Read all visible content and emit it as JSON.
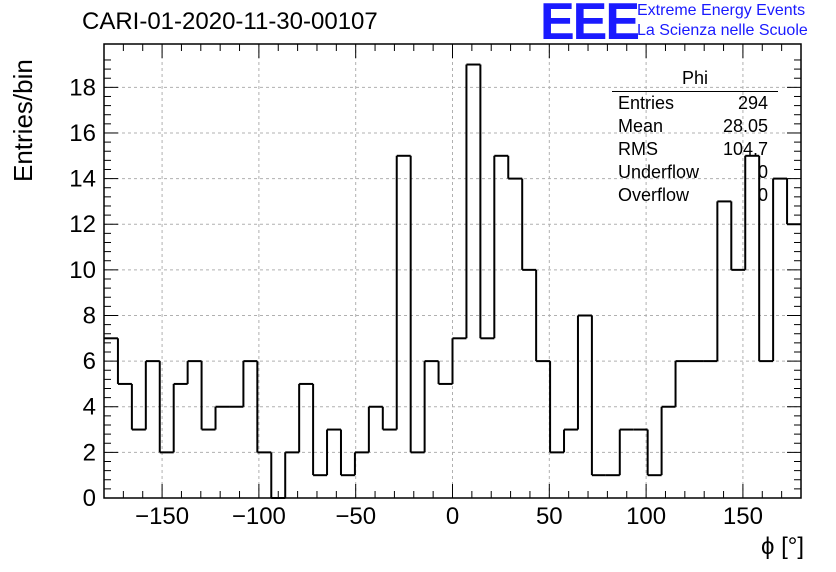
{
  "header": {
    "title": "CARI-01-2020-11-30-00107"
  },
  "logo": {
    "mark": "EEE",
    "line1": "Extreme Energy Events",
    "line2": "La Scienza nelle Scuole",
    "color": "#1a1aff"
  },
  "stats": {
    "title": "Phi",
    "rows": [
      {
        "label": "Entries",
        "value": "294"
      },
      {
        "label": "Mean",
        "value": "28.05"
      },
      {
        "label": "RMS",
        "value": "104.7"
      },
      {
        "label": "Underflow",
        "value": "0"
      },
      {
        "label": "Overflow",
        "value": "0"
      }
    ]
  },
  "chart_data": {
    "type": "bar",
    "title": "CARI-01-2020-11-30-00107",
    "xlabel": "ϕ [°]",
    "ylabel": "Entries/bin",
    "xlim": [
      -180,
      180
    ],
    "ylim": [
      0,
      19.9
    ],
    "grid": true,
    "bin_width": 7.2,
    "bin_edges_start": -180,
    "values": [
      7,
      5,
      3,
      6,
      2,
      5,
      6,
      3,
      4,
      4,
      6,
      2,
      0,
      2,
      5,
      1,
      3,
      1,
      2,
      4,
      3,
      15,
      2,
      6,
      5,
      7,
      19,
      7,
      15,
      14,
      10,
      6,
      2,
      3,
      8,
      1,
      1,
      3,
      3,
      1,
      4,
      6,
      6,
      6,
      13,
      10,
      15,
      6,
      14,
      12
    ],
    "x_ticks": [
      -150,
      -100,
      -50,
      0,
      50,
      100,
      150
    ],
    "x_tick_labels": [
      "−150",
      "−100",
      "−50",
      "0",
      "50",
      "100",
      "150"
    ],
    "y_ticks": [
      0,
      2,
      4,
      6,
      8,
      10,
      12,
      14,
      16,
      18
    ],
    "y_tick_labels": [
      "0",
      "2",
      "4",
      "6",
      "8",
      "10",
      "12",
      "14",
      "16",
      "18"
    ]
  }
}
